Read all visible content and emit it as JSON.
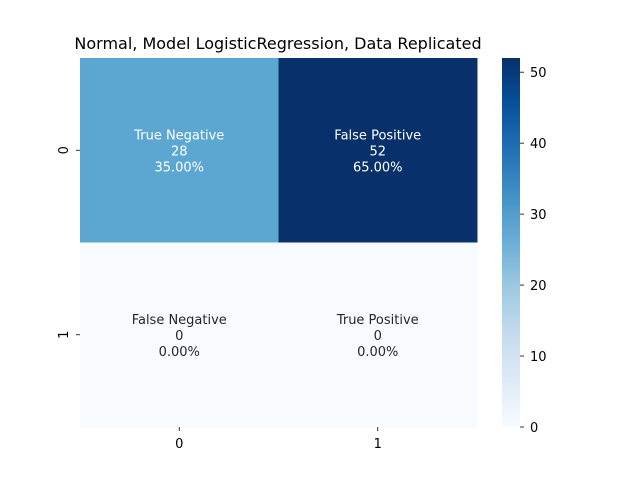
{
  "chart_data": {
    "type": "heatmap",
    "title": "Normal, Model LogisticRegression, Data Replicated",
    "xlabel": "",
    "ylabel": "",
    "x_categories": [
      "0",
      "1"
    ],
    "y_categories": [
      "0",
      "1"
    ],
    "cells": [
      {
        "row": 0,
        "col": 0,
        "label": "True Negative",
        "count": "28",
        "percent": "35.00%",
        "value": 28,
        "color": "#5ca7d2",
        "text_color": "#ffffff"
      },
      {
        "row": 0,
        "col": 1,
        "label": "False Positive",
        "count": "52",
        "percent": "65.00%",
        "value": 52,
        "color": "#08306b",
        "text_color": "#ffffff"
      },
      {
        "row": 1,
        "col": 0,
        "label": "False Negative",
        "count": "0",
        "percent": "0.00%",
        "value": 0,
        "color": "#f7fbff",
        "text_color": "#262626"
      },
      {
        "row": 1,
        "col": 1,
        "label": "True Positive",
        "count": "0",
        "percent": "0.00%",
        "value": 0,
        "color": "#f7fbff",
        "text_color": "#262626"
      }
    ],
    "colorbar": {
      "colormap": "Blues",
      "min": 0,
      "max": 52,
      "ticks": [
        0,
        10,
        20,
        30,
        40,
        50
      ],
      "tick_labels": [
        "0",
        "10",
        "20",
        "30",
        "40",
        "50"
      ],
      "stops": [
        "#f7fbff",
        "#deebf7",
        "#c6dbef",
        "#9ecae1",
        "#6baed6",
        "#4292c6",
        "#2171b5",
        "#08519c",
        "#08306b"
      ]
    }
  }
}
